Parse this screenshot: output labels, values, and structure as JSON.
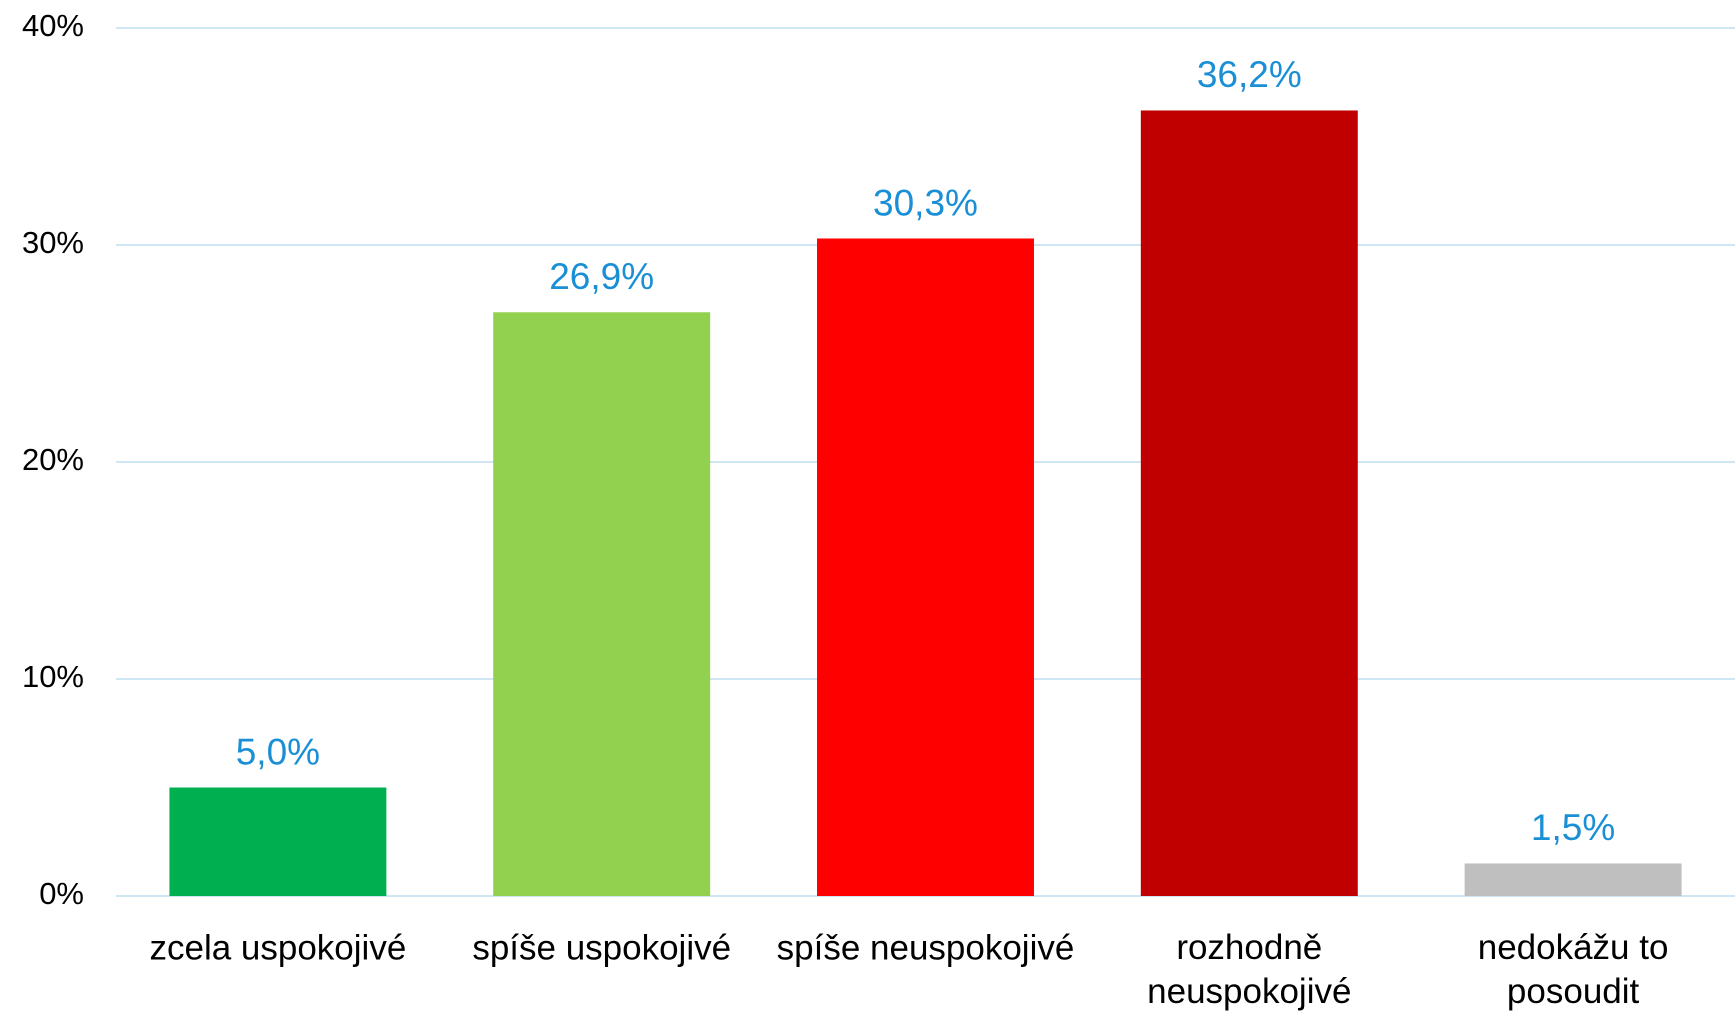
{
  "chart_data": {
    "type": "bar",
    "categories": [
      "zcela uspokojivé",
      "spíše uspokojivé",
      "spíše neuspokojivé",
      "rozhodně neuspokojivé",
      "nedokážu to posoudit"
    ],
    "values": [
      5.0,
      26.9,
      30.3,
      36.2,
      1.5
    ],
    "value_labels": [
      "5,0%",
      "26,9%",
      "30,3%",
      "36,2%",
      "1,5%"
    ],
    "colors": [
      "#00b050",
      "#92d050",
      "#ff0000",
      "#c00000",
      "#bfbfbf"
    ],
    "ylim": [
      0,
      40
    ],
    "yticks": [
      {
        "value": 0,
        "label": "0%"
      },
      {
        "value": 10,
        "label": "10%"
      },
      {
        "value": 20,
        "label": "20%"
      },
      {
        "value": 30,
        "label": "30%"
      },
      {
        "value": 40,
        "label": "40%"
      }
    ],
    "grid": true
  }
}
